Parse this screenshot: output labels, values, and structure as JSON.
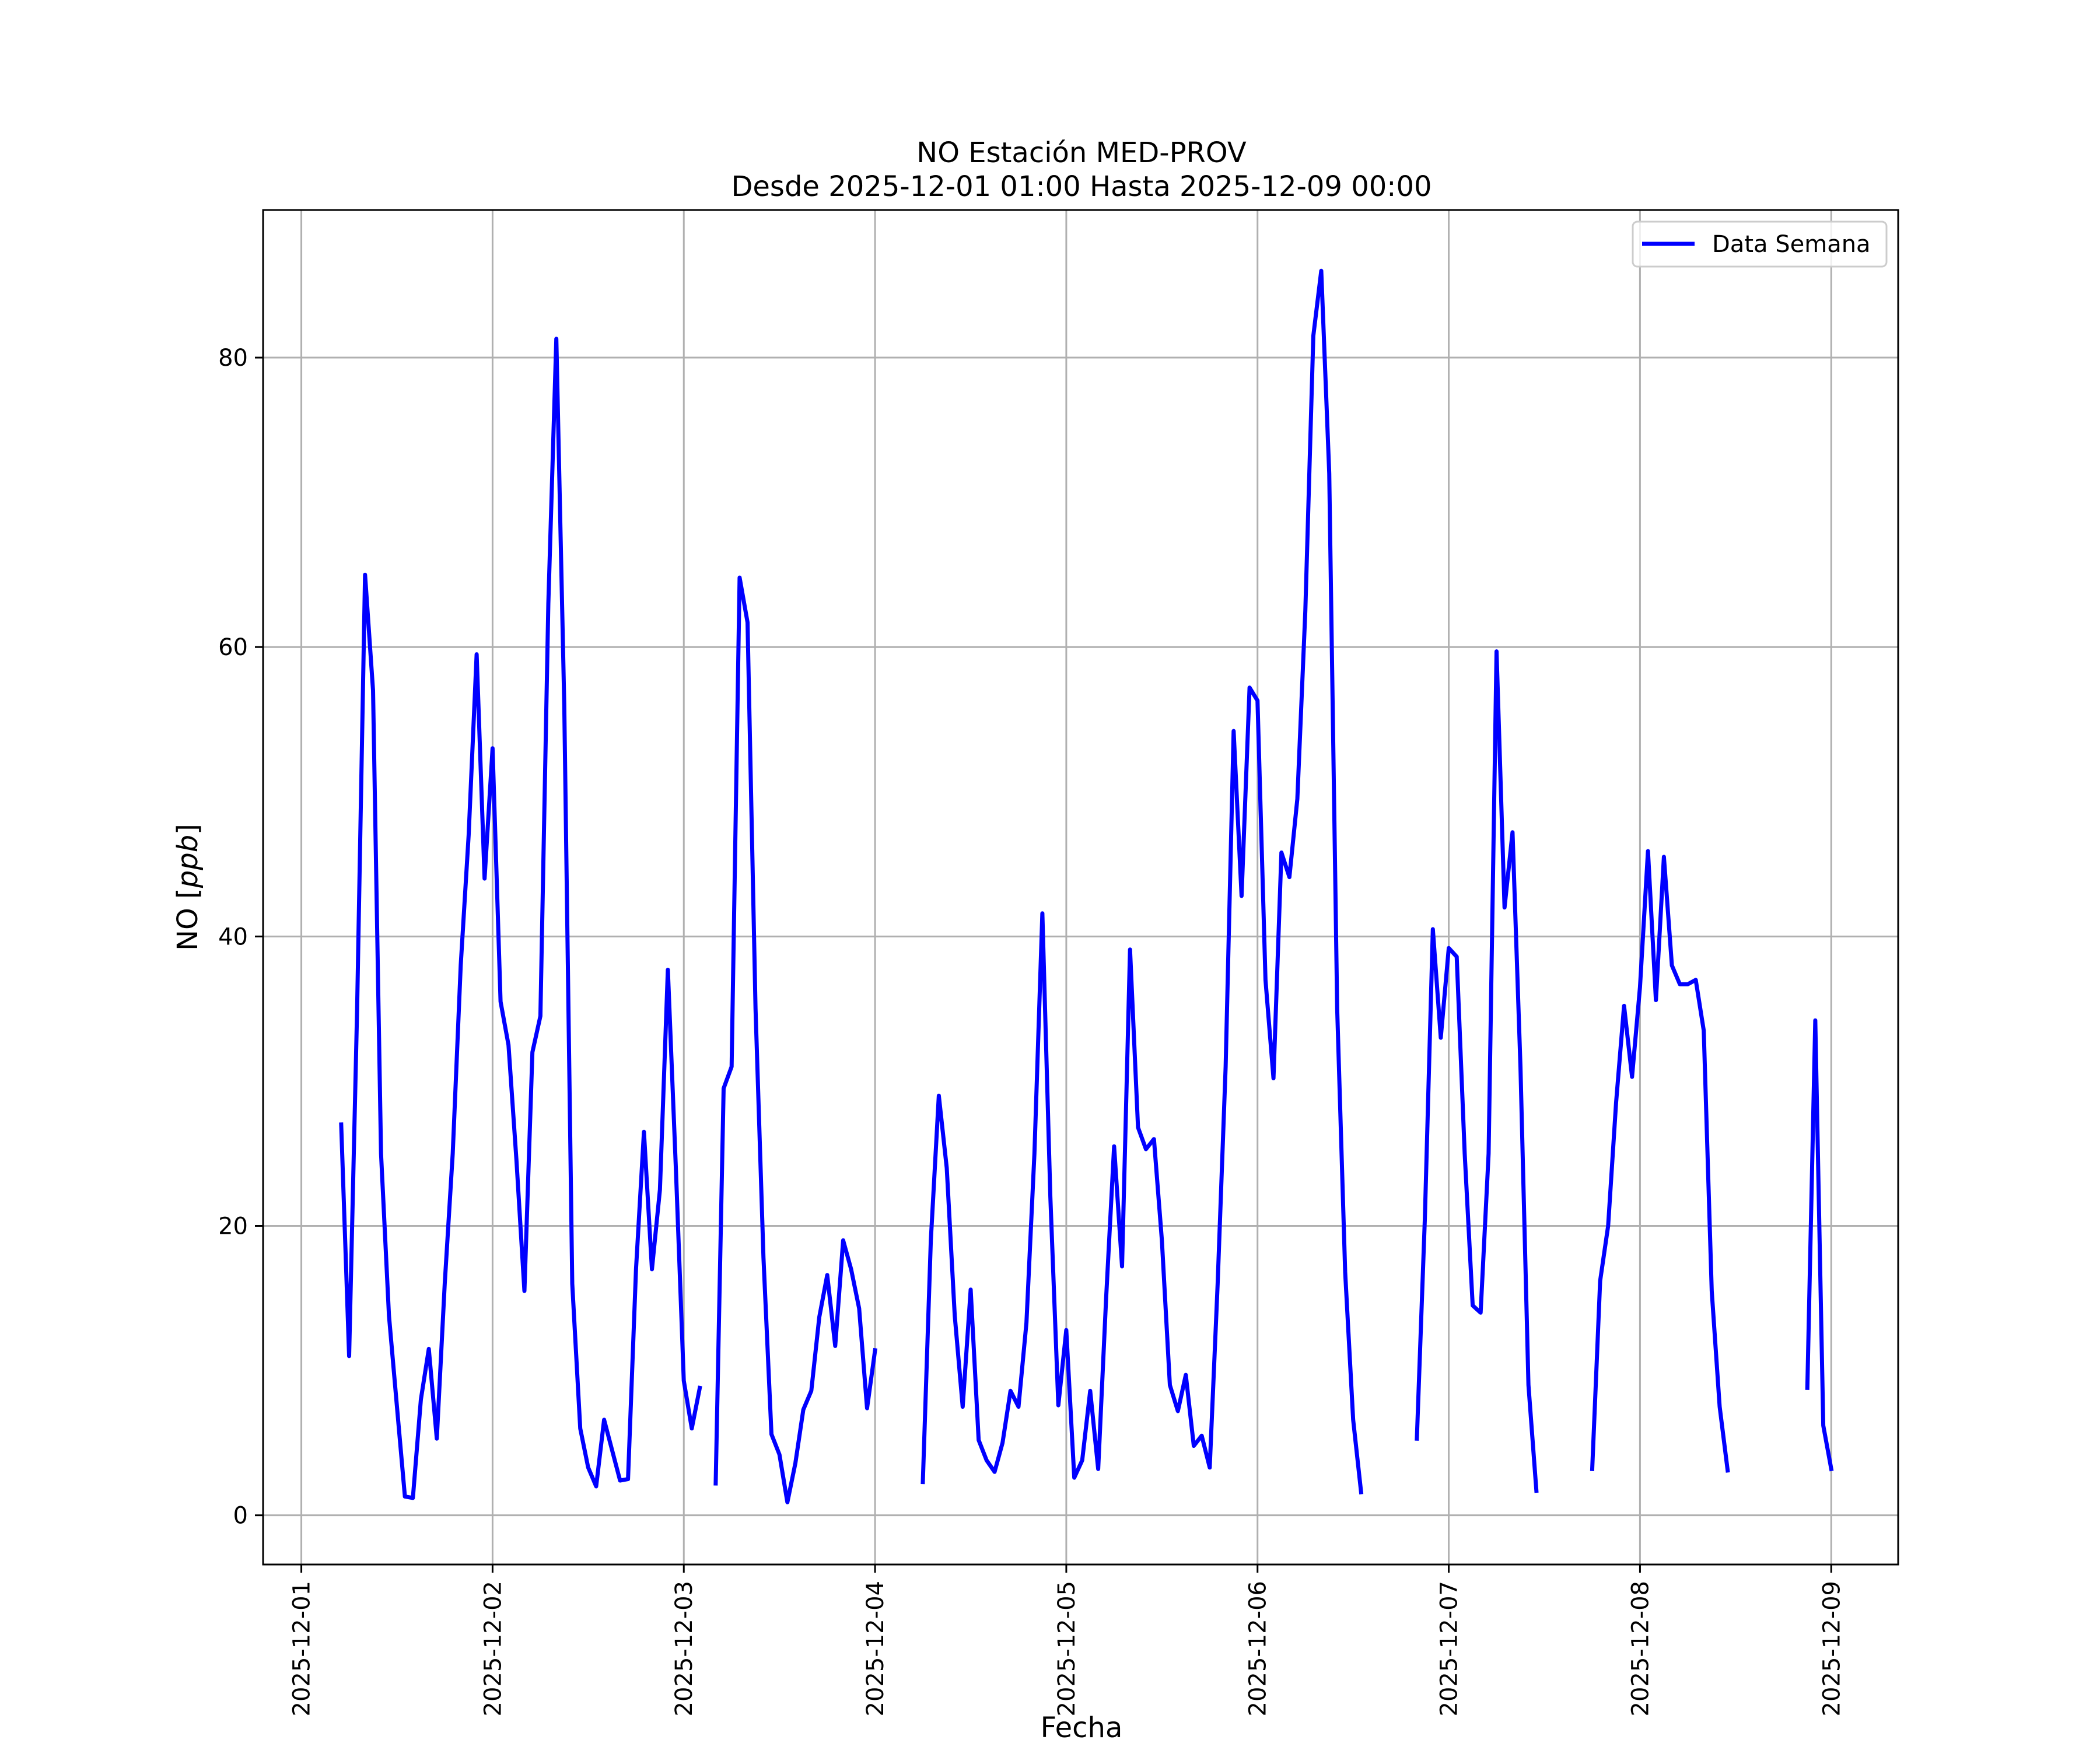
{
  "chart_data": {
    "type": "line",
    "title": "NO Estación MED-PROV",
    "subtitle": "Desde 2025-12-01 01:00 Hasta 2025-12-09 00:00",
    "xlabel": "Fecha",
    "ylabel": "NO [ppb]",
    "ylabel_main": "NO ",
    "ylabel_unit": "ppb",
    "x_ticks": [
      "2025-12-01",
      "2025-12-02",
      "2025-12-03",
      "2025-12-04",
      "2025-12-05",
      "2025-12-06",
      "2025-12-07",
      "2025-12-08",
      "2025-12-09"
    ],
    "y_ticks": [
      0,
      20,
      40,
      60,
      80
    ],
    "xlim": [
      "2025-11-30 19:12",
      "2025-12-09 08:24"
    ],
    "ylim": [
      -3.4,
      90.2
    ],
    "grid": true,
    "legend_position": "top-right",
    "series": [
      {
        "name": "Data Semana",
        "color": "#0000ff",
        "points": [
          [
            "2025-12-01 05:00",
            27.0
          ],
          [
            "2025-12-01 06:00",
            11.0
          ],
          [
            "2025-12-01 07:00",
            35.0
          ],
          [
            "2025-12-01 08:00",
            65.0
          ],
          [
            "2025-12-01 09:00",
            57.0
          ],
          [
            "2025-12-01 10:00",
            25.0
          ],
          [
            "2025-12-01 11:00",
            13.8
          ],
          [
            "2025-12-01 12:00",
            7.5
          ],
          [
            "2025-12-01 13:00",
            1.3
          ],
          [
            "2025-12-01 14:00",
            1.2
          ],
          [
            "2025-12-01 15:00",
            8.0
          ],
          [
            "2025-12-01 16:00",
            11.5
          ],
          [
            "2025-12-01 17:00",
            5.3
          ],
          [
            "2025-12-01 18:00",
            16.0
          ],
          [
            "2025-12-01 19:00",
            25.0
          ],
          [
            "2025-12-01 20:00",
            38.0
          ],
          [
            "2025-12-01 21:00",
            47.0
          ],
          [
            "2025-12-01 22:00",
            59.5
          ],
          [
            "2025-12-01 23:00",
            44.0
          ],
          [
            "2025-12-02 00:00",
            53.0
          ],
          [
            "2025-12-02 01:00",
            35.5
          ],
          [
            "2025-12-02 02:00",
            32.5
          ],
          [
            "2025-12-02 03:00",
            24.5
          ],
          [
            "2025-12-02 04:00",
            15.5
          ],
          [
            "2025-12-02 05:00",
            32.0
          ],
          [
            "2025-12-02 06:00",
            34.5
          ],
          [
            "2025-12-02 07:00",
            63.0
          ],
          [
            "2025-12-02 08:00",
            81.3
          ],
          [
            "2025-12-02 09:00",
            56.0
          ],
          [
            "2025-12-02 10:00",
            16.0
          ],
          [
            "2025-12-02 11:00",
            6.0
          ],
          [
            "2025-12-02 12:00",
            3.3
          ],
          [
            "2025-12-02 13:00",
            2.0
          ],
          [
            "2025-12-02 14:00",
            6.6
          ],
          [
            "2025-12-02 15:00",
            4.5
          ],
          [
            "2025-12-02 16:00",
            2.4
          ],
          [
            "2025-12-02 17:00",
            2.5
          ],
          [
            "2025-12-02 18:00",
            17.0
          ],
          [
            "2025-12-02 19:00",
            26.5
          ],
          [
            "2025-12-02 20:00",
            17.0
          ],
          [
            "2025-12-02 21:00",
            22.5
          ],
          [
            "2025-12-02 22:00",
            37.7
          ],
          [
            "2025-12-02 23:00",
            24.0
          ],
          [
            "2025-12-03 00:00",
            9.3
          ],
          [
            "2025-12-03 01:00",
            6.0
          ],
          [
            "2025-12-03 02:00",
            8.8
          ],
          [
            null,
            null
          ],
          [
            "2025-12-03 04:00",
            2.2
          ],
          [
            "2025-12-03 05:00",
            29.5
          ],
          [
            "2025-12-03 06:00",
            31.0
          ],
          [
            "2025-12-03 07:00",
            64.8
          ],
          [
            "2025-12-03 08:00",
            61.7
          ],
          [
            "2025-12-03 09:00",
            35.0
          ],
          [
            "2025-12-03 10:00",
            17.8
          ],
          [
            "2025-12-03 11:00",
            5.6
          ],
          [
            "2025-12-03 12:00",
            4.2
          ],
          [
            "2025-12-03 13:00",
            0.9
          ],
          [
            "2025-12-03 14:00",
            3.6
          ],
          [
            "2025-12-03 15:00",
            7.3
          ],
          [
            "2025-12-03 16:00",
            8.6
          ],
          [
            "2025-12-03 17:00",
            13.7
          ],
          [
            "2025-12-03 18:00",
            16.6
          ],
          [
            "2025-12-03 19:00",
            11.7
          ],
          [
            "2025-12-03 20:00",
            19.0
          ],
          [
            "2025-12-03 21:00",
            17.0
          ],
          [
            "2025-12-03 22:00",
            14.3
          ],
          [
            "2025-12-03 23:00",
            7.4
          ],
          [
            "2025-12-04 00:00",
            11.4
          ],
          [
            null,
            null
          ],
          [
            "2025-12-04 06:00",
            2.3
          ],
          [
            "2025-12-04 07:00",
            19.0
          ],
          [
            "2025-12-04 08:00",
            29.0
          ],
          [
            "2025-12-04 09:00",
            24.0
          ],
          [
            "2025-12-04 10:00",
            13.8
          ],
          [
            "2025-12-04 11:00",
            7.5
          ],
          [
            "2025-12-04 12:00",
            15.6
          ],
          [
            "2025-12-04 13:00",
            5.2
          ],
          [
            "2025-12-04 14:00",
            3.8
          ],
          [
            "2025-12-04 15:00",
            3.0
          ],
          [
            "2025-12-04 16:00",
            5.0
          ],
          [
            "2025-12-04 17:00",
            8.6
          ],
          [
            "2025-12-04 18:00",
            7.5
          ],
          [
            "2025-12-04 19:00",
            13.3
          ],
          [
            "2025-12-04 20:00",
            25.0
          ],
          [
            "2025-12-04 21:00",
            41.6
          ],
          [
            "2025-12-04 22:00",
            22.0
          ],
          [
            "2025-12-04 23:00",
            7.6
          ],
          [
            "2025-12-05 00:00",
            12.8
          ],
          [
            "2025-12-05 01:00",
            2.6
          ],
          [
            "2025-12-05 02:00",
            3.8
          ],
          [
            "2025-12-05 03:00",
            8.6
          ],
          [
            "2025-12-05 04:00",
            3.2
          ],
          [
            "2025-12-05 05:00",
            15.0
          ],
          [
            "2025-12-05 06:00",
            25.5
          ],
          [
            "2025-12-05 07:00",
            17.2
          ],
          [
            "2025-12-05 08:00",
            39.1
          ],
          [
            "2025-12-05 09:00",
            26.8
          ],
          [
            "2025-12-05 10:00",
            25.3
          ],
          [
            "2025-12-05 11:00",
            26.0
          ],
          [
            "2025-12-05 12:00",
            19.0
          ],
          [
            "2025-12-05 13:00",
            9.0
          ],
          [
            "2025-12-05 14:00",
            7.2
          ],
          [
            "2025-12-05 15:00",
            9.7
          ],
          [
            "2025-12-05 16:00",
            4.8
          ],
          [
            "2025-12-05 17:00",
            5.5
          ],
          [
            "2025-12-05 18:00",
            3.3
          ],
          [
            "2025-12-05 19:00",
            16.0
          ],
          [
            "2025-12-05 20:00",
            31.0
          ],
          [
            "2025-12-05 21:00",
            54.2
          ],
          [
            "2025-12-05 22:00",
            42.8
          ],
          [
            "2025-12-05 23:00",
            57.2
          ],
          [
            "2025-12-06 00:00",
            56.3
          ],
          [
            "2025-12-06 01:00",
            37.0
          ],
          [
            "2025-12-06 02:00",
            30.2
          ],
          [
            "2025-12-06 03:00",
            45.8
          ],
          [
            "2025-12-06 04:00",
            44.1
          ],
          [
            "2025-12-06 05:00",
            49.5
          ],
          [
            "2025-12-06 06:00",
            62.5
          ],
          [
            "2025-12-06 07:00",
            81.5
          ],
          [
            "2025-12-06 08:00",
            86.0
          ],
          [
            "2025-12-06 09:00",
            72.0
          ],
          [
            "2025-12-06 10:00",
            35.0
          ],
          [
            "2025-12-06 11:00",
            16.8
          ],
          [
            "2025-12-06 12:00",
            6.6
          ],
          [
            "2025-12-06 13:00",
            1.6
          ],
          [
            null,
            null
          ],
          [
            "2025-12-06 20:00",
            5.3
          ],
          [
            "2025-12-06 21:00",
            20.5
          ],
          [
            "2025-12-06 22:00",
            40.5
          ],
          [
            "2025-12-06 23:00",
            33.0
          ],
          [
            "2025-12-07 00:00",
            39.2
          ],
          [
            "2025-12-07 01:00",
            38.6
          ],
          [
            "2025-12-07 02:00",
            25.0
          ],
          [
            "2025-12-07 03:00",
            14.5
          ],
          [
            "2025-12-07 04:00",
            14.0
          ],
          [
            "2025-12-07 05:00",
            25.0
          ],
          [
            "2025-12-07 06:00",
            59.7
          ],
          [
            "2025-12-07 07:00",
            42.0
          ],
          [
            "2025-12-07 08:00",
            47.2
          ],
          [
            "2025-12-07 09:00",
            31.0
          ],
          [
            "2025-12-07 10:00",
            9.0
          ],
          [
            "2025-12-07 11:00",
            1.7
          ],
          [
            null,
            null
          ],
          [
            "2025-12-07 18:00",
            3.2
          ],
          [
            "2025-12-07 19:00",
            16.2
          ],
          [
            "2025-12-07 20:00",
            20.0
          ],
          [
            "2025-12-07 21:00",
            28.5
          ],
          [
            "2025-12-07 22:00",
            35.2
          ],
          [
            "2025-12-07 23:00",
            30.3
          ],
          [
            "2025-12-08 00:00",
            36.5
          ],
          [
            "2025-12-08 01:00",
            45.9
          ],
          [
            "2025-12-08 02:00",
            35.6
          ],
          [
            "2025-12-08 03:00",
            45.5
          ],
          [
            "2025-12-08 04:00",
            38.0
          ],
          [
            "2025-12-08 05:00",
            36.7
          ],
          [
            "2025-12-08 06:00",
            36.7
          ],
          [
            "2025-12-08 07:00",
            37.0
          ],
          [
            "2025-12-08 08:00",
            33.5
          ],
          [
            "2025-12-08 09:00",
            15.5
          ],
          [
            "2025-12-08 10:00",
            7.5
          ],
          [
            "2025-12-08 11:00",
            3.1
          ],
          [
            null,
            null
          ],
          [
            "2025-12-08 21:00",
            8.8
          ],
          [
            "2025-12-08 22:00",
            34.2
          ],
          [
            "2025-12-08 23:00",
            6.2
          ],
          [
            "2025-12-09 00:00",
            3.2
          ]
        ]
      }
    ]
  }
}
